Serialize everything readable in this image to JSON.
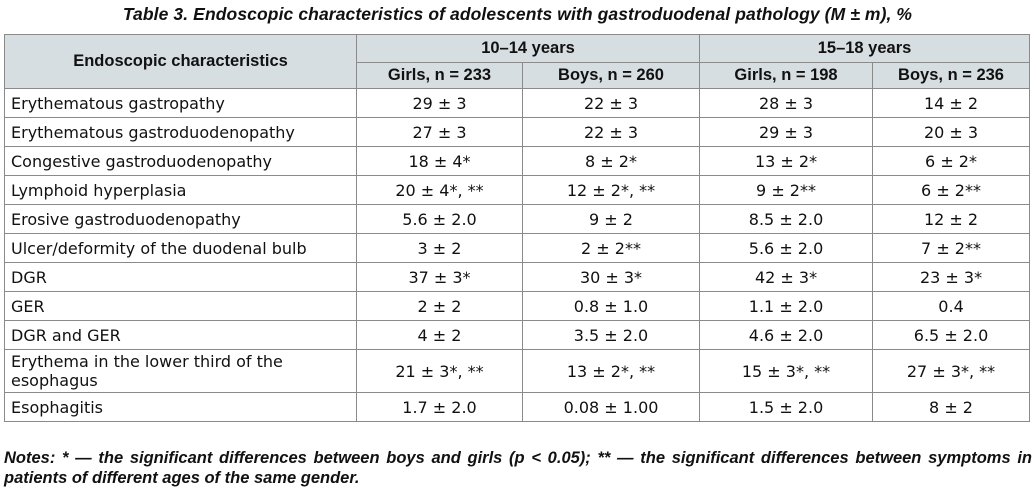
{
  "caption": "Table 3. Endoscopic characteristics of adolescents with gastroduodenal pathology (M ± m), %",
  "header": {
    "characteristics": "Endoscopic characteristics",
    "group1": "10–14 years",
    "group2": "15–18 years",
    "cols": [
      "Girls, n = 233",
      "Boys, n = 260",
      "Girls, n = 198",
      "Boys, n = 236"
    ]
  },
  "rows": [
    {
      "label": "Erythematous gastropathy",
      "values": [
        "29 ± 3",
        "22 ± 3",
        "28 ± 3",
        "14 ± 2"
      ]
    },
    {
      "label": "Erythematous gastroduodenopathy",
      "values": [
        "27 ± 3",
        "22 ± 3",
        "29 ± 3",
        "20 ± 3"
      ]
    },
    {
      "label": "Congestive gastroduodenopathy",
      "values": [
        "18 ± 4*",
        "8 ± 2*",
        "13 ± 2*",
        "6 ± 2*"
      ]
    },
    {
      "label": "Lymphoid hyperplasia",
      "values": [
        "20 ± 4*, **",
        "12 ± 2*, **",
        "9 ± 2**",
        "6 ± 2**"
      ]
    },
    {
      "label": "Erosive gastroduodenopathy",
      "values": [
        "5.6 ± 2.0",
        "9 ± 2",
        "8.5 ± 2.0",
        "12 ± 2"
      ]
    },
    {
      "label": "Ulcer/deformity of the duodenal bulb",
      "values": [
        "3 ± 2",
        "2 ± 2**",
        "5.6 ± 2.0",
        "7 ± 2**"
      ]
    },
    {
      "label": "DGR",
      "values": [
        "37 ± 3*",
        "30 ± 3*",
        "42 ± 3*",
        "23 ± 3*"
      ]
    },
    {
      "label": "GER",
      "values": [
        "2 ± 2",
        "0.8 ± 1.0",
        "1.1 ± 2.0",
        "0.4"
      ]
    },
    {
      "label": "DGR and GER",
      "values": [
        "4 ± 2",
        "3.5 ± 2.0",
        "4.6 ± 2.0",
        "6.5 ± 2.0"
      ]
    },
    {
      "label": "Erythema in the lower third of the esophagus",
      "values": [
        "21 ± 3*, **",
        "13 ± 2*, **",
        "15 ± 3*, **",
        "27 ± 3*, **"
      ]
    },
    {
      "label": "Esophagitis",
      "values": [
        "1.7 ± 2.0",
        "0.08 ± 1.00",
        "1.5 ± 2.0",
        "8 ± 2"
      ]
    }
  ],
  "notes": "Notes: * — the significant differences between boys and girls (p < 0.05); ** — the significant differences between symptoms in patients of different ages of the same gender."
}
